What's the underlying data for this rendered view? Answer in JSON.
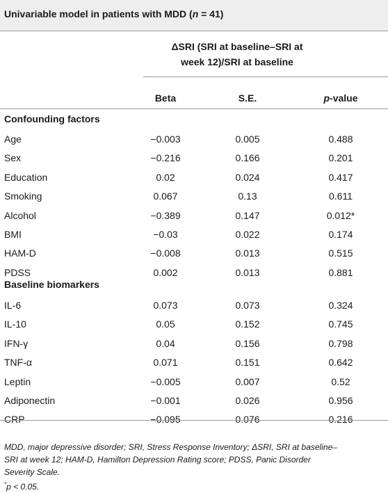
{
  "title": {
    "prefix": "Univariable model in patients with MDD (",
    "n_symbol": "n",
    "suffix": " = 41)"
  },
  "group_header": {
    "line1": "ΔSRI (SRI at baseline–SRI at",
    "line2": "week 12)/SRI at baseline"
  },
  "columns": {
    "beta": "Beta",
    "se": "S.E.",
    "p_prefix": "p",
    "p_suffix": "-value"
  },
  "sections": [
    {
      "label": "Confounding factors",
      "rows": [
        {
          "label": "Age",
          "beta": "−0.003",
          "se": "0.005",
          "p": "0.488"
        },
        {
          "label": "Sex",
          "beta": "−0.216",
          "se": "0.166",
          "p": "0.201"
        },
        {
          "label": "Education",
          "beta": "0.02",
          "se": "0.024",
          "p": "0.417"
        },
        {
          "label": "Smoking",
          "beta": "0.067",
          "se": "0.13",
          "p": "0.611"
        },
        {
          "label": "Alcohol",
          "beta": "−0.389",
          "se": "0.147",
          "p": "0.012*"
        },
        {
          "label": "BMI",
          "beta": "−0.03",
          "se": "0.022",
          "p": "0.174"
        },
        {
          "label": "HAM-D",
          "beta": "−0.008",
          "se": "0.013",
          "p": "0.515"
        },
        {
          "label": "PDSS",
          "beta": "0.002",
          "se": "0.013",
          "p": "0.881"
        }
      ]
    },
    {
      "label": "Baseline biomarkers",
      "rows": [
        {
          "label": "IL-6",
          "beta": "0.073",
          "se": "0.073",
          "p": "0.324"
        },
        {
          "label": "IL-10",
          "beta": "0.05",
          "se": "0.152",
          "p": "0.745"
        },
        {
          "label": "IFN-γ",
          "beta": "0.04",
          "se": "0.156",
          "p": "0.798"
        },
        {
          "label": "TNF-α",
          "beta": "0.071",
          "se": "0.151",
          "p": "0.642"
        },
        {
          "label": "Leptin",
          "beta": "−0.005",
          "se": "0.007",
          "p": "0.52"
        },
        {
          "label": "Adiponectin",
          "beta": "−0.001",
          "se": "0.026",
          "p": "0.956"
        },
        {
          "label": "CRP",
          "beta": "−0.095",
          "se": "0.076",
          "p": "0.216"
        }
      ]
    }
  ],
  "footnote": {
    "line1": "MDD, major depressive disorder; SRI, Stress Response Inventory; ΔSRI, SRI at baseline–",
    "line2": "SRI at week 12; HAM-D, Hamilton Depression Rating score; PDSS, Panic Disorder",
    "line3": "Severity Scale.",
    "sig_mark": "*",
    "sig_text": "p < 0.05."
  }
}
